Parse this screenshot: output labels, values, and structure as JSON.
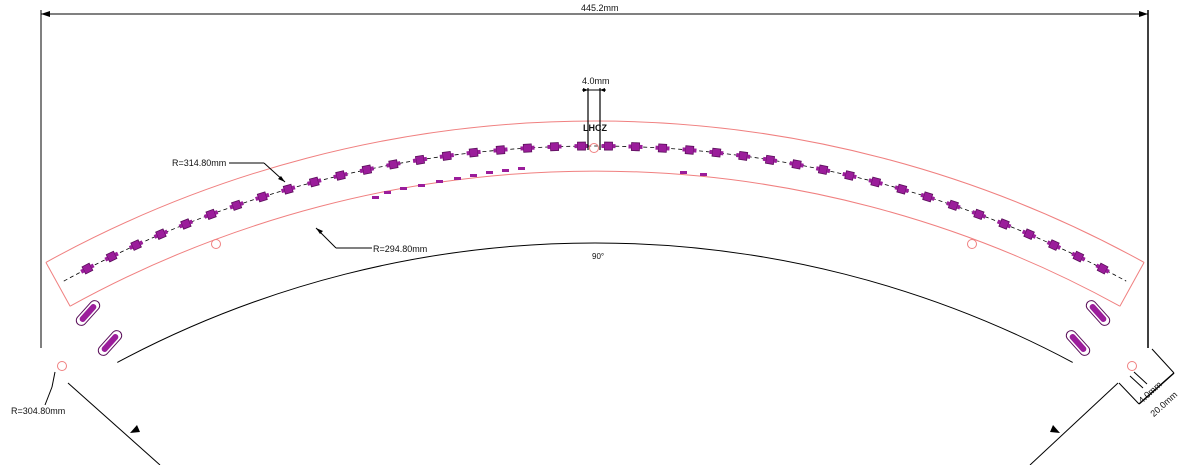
{
  "drawing": {
    "overall_width": "445.2mm",
    "outer_radius": "R=314.80mm",
    "inner_radius": "R=294.80mm",
    "center_radius": "R=304.80mm",
    "angle": "90°",
    "slot_width_top": "4.0mm",
    "slot_width_end": "4.0mm",
    "band_width": "20.0mm",
    "logo_text": "LHCZ",
    "colors": {
      "band_outline": "#f08080",
      "component": "#9b1d9b",
      "component_dark": "#5a0f5a",
      "line": "#000000"
    }
  }
}
